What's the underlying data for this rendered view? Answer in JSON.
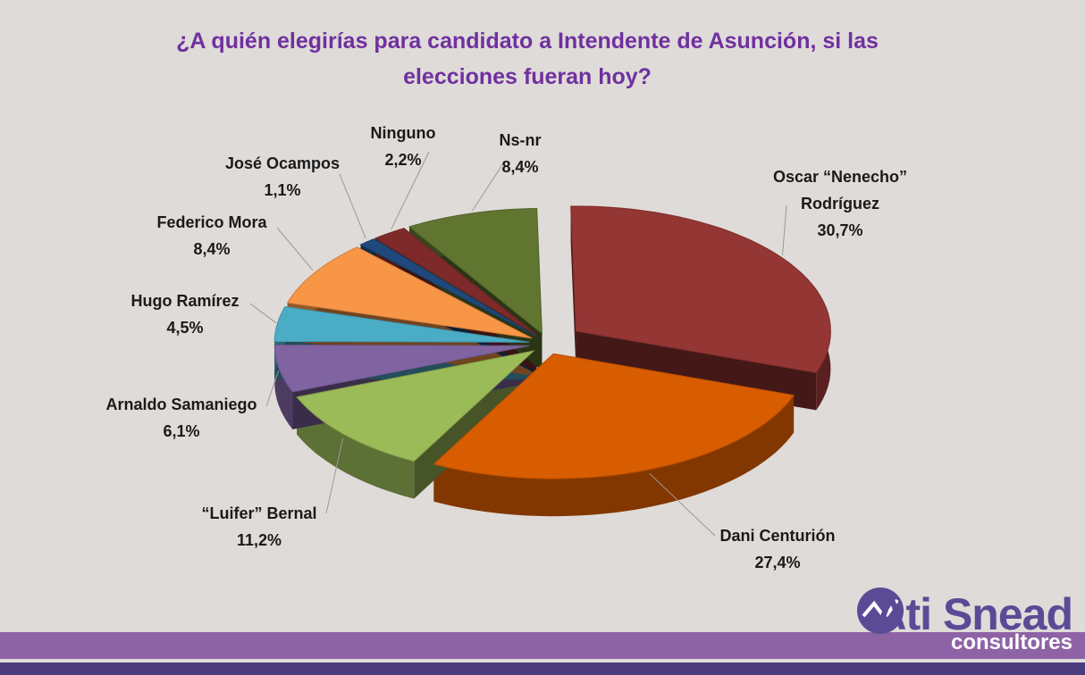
{
  "chart_data": {
    "type": "pie",
    "title": "¿A quién elegirías para candidato a Intendente de Asunción, si las elecciones fueran hoy?",
    "categories": [
      "Oscar “Nenecho” Rodríguez",
      "Dani Centurión",
      "“Luifer” Bernal",
      "Arnaldo Samaniego",
      "Hugo Ramírez",
      "Federico Mora",
      "José Ocampos",
      "Ninguno",
      "Ns-nr"
    ],
    "values": [
      30.7,
      27.4,
      11.2,
      6.1,
      4.5,
      8.4,
      1.1,
      2.2,
      8.4
    ],
    "value_labels": [
      "30,7%",
      "27,4%",
      "11,2%",
      "6,1%",
      "4,5%",
      "8,4%",
      "1,1%",
      "2,2%",
      "8,4%"
    ],
    "colors": [
      "#943634",
      "#d85c00",
      "#9bbb59",
      "#8064a2",
      "#4bacc6",
      "#f79646",
      "#1f497d",
      "#7f2a2a",
      "#5f7530"
    ]
  },
  "logo": {
    "name": "Ati Snead",
    "sub": "consultores"
  }
}
